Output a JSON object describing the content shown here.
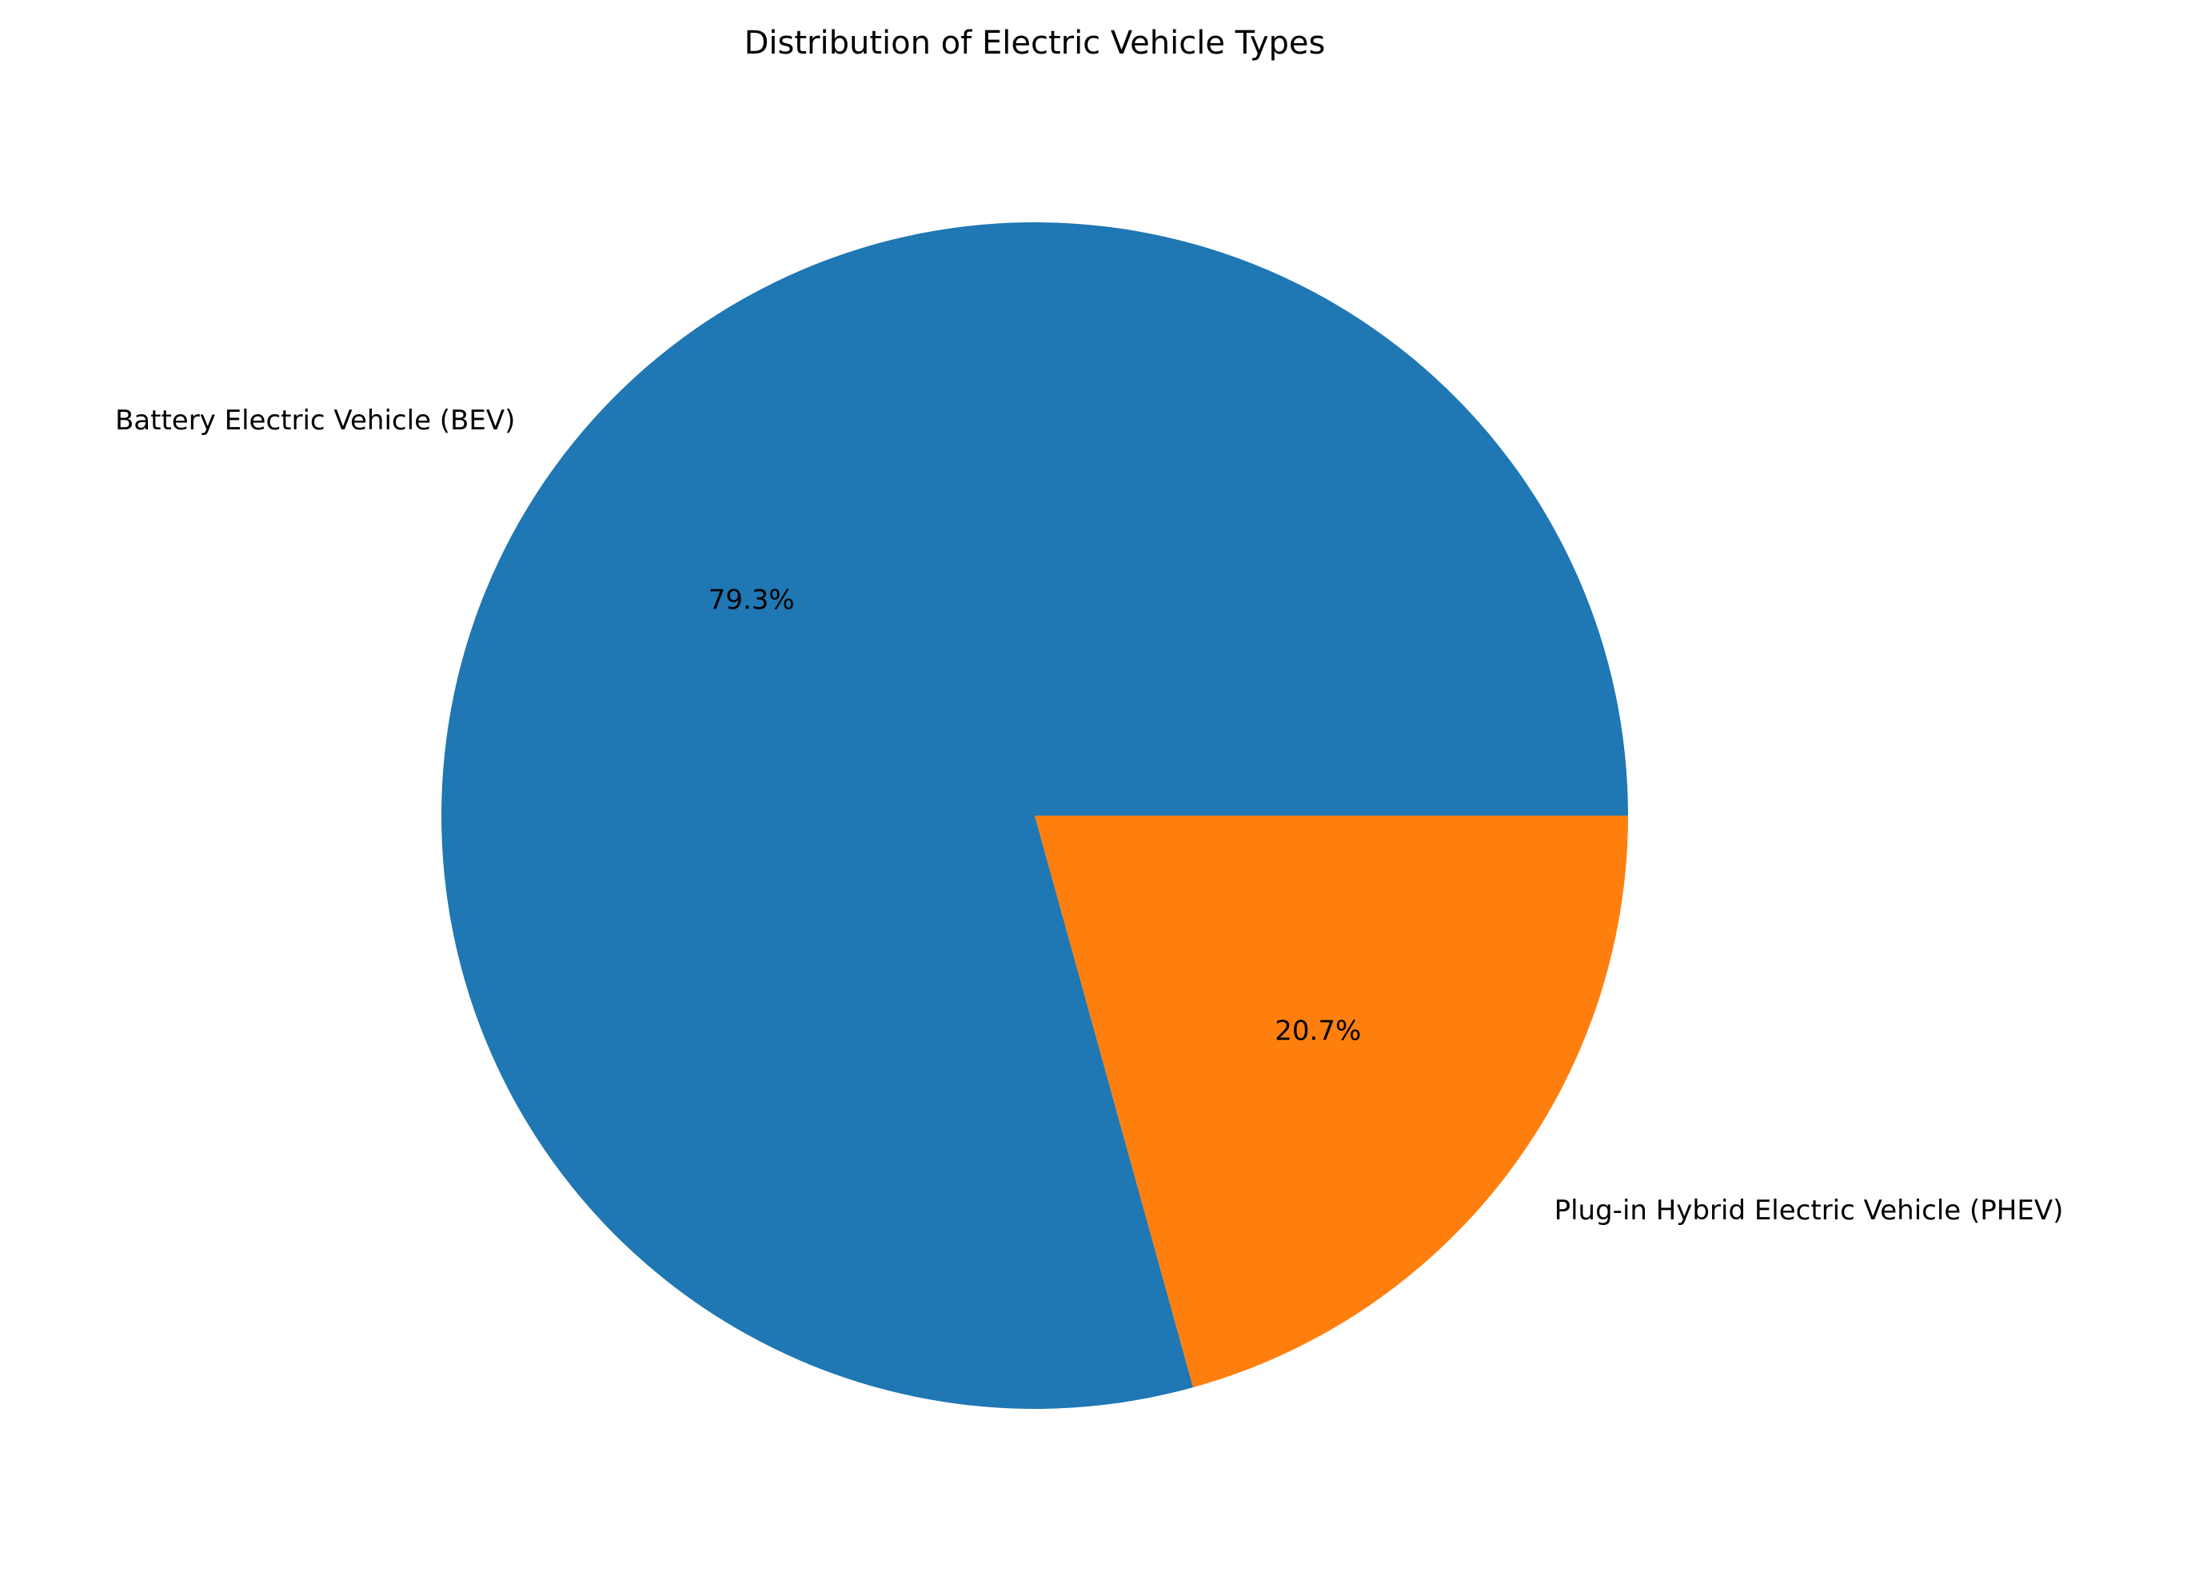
{
  "chart_data": {
    "type": "pie",
    "title": "Distribution of Electric Vehicle Types",
    "slices": [
      {
        "label": "Battery Electric Vehicle (BEV)",
        "value": 79.3,
        "pct_label": "79.3%",
        "color": "#1f77b4"
      },
      {
        "label": "Plug-in Hybrid Electric Vehicle (PHEV)",
        "value": 20.7,
        "pct_label": "20.7%",
        "color": "#ff7f0e"
      }
    ],
    "start_angle_deg": 0,
    "direction": "counterclockwise",
    "legend": "none"
  }
}
